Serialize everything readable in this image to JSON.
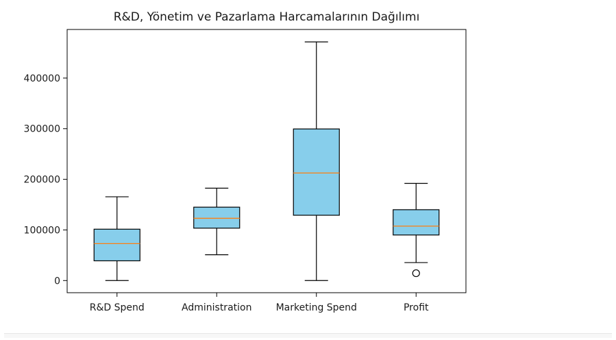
{
  "chart_data": {
    "type": "boxplot",
    "title": "R&D, Yönetim ve Pazarlama Harcamalarının Dağılımı",
    "xlabel": "",
    "ylabel": "",
    "categories": [
      "R&D Spend",
      "Administration",
      "Marketing Spend",
      "Profit"
    ],
    "ylim": [
      -24000,
      496000
    ],
    "yticks": [
      0,
      100000,
      200000,
      300000,
      400000
    ],
    "ytick_labels": [
      "0",
      "100000",
      "200000",
      "300000",
      "400000"
    ],
    "boxes": [
      {
        "label": "R&D Spend",
        "whisker_low": 0,
        "q1": 39000,
        "median": 73000,
        "q3": 101500,
        "whisker_high": 165500,
        "outliers": []
      },
      {
        "label": "Administration",
        "whisker_low": 51000,
        "q1": 103500,
        "median": 123000,
        "q3": 145000,
        "whisker_high": 182500,
        "outliers": []
      },
      {
        "label": "Marketing Spend",
        "whisker_low": 0,
        "q1": 129000,
        "median": 212500,
        "q3": 299500,
        "whisker_high": 471500,
        "outliers": []
      },
      {
        "label": "Profit",
        "whisker_low": 35500,
        "q1": 90000,
        "median": 107500,
        "q3": 140000,
        "whisker_high": 192000,
        "outliers": [
          14500
        ]
      }
    ],
    "box_color": "#87ceeb",
    "median_color": "#ff7f0e",
    "grid": false,
    "legend": "none"
  }
}
